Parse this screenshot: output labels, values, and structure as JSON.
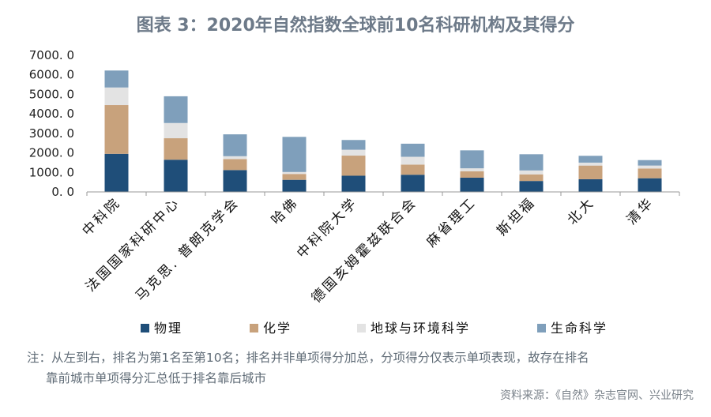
{
  "title": "图表 3：2020年自然指数全球前10名科研机构及其得分",
  "chart_data": {
    "type": "bar",
    "stacked": true,
    "categories": [
      "中科院",
      "法国国家科研中心",
      "马克思. 普朗克学会",
      "哈佛",
      "中科院大学",
      "德国亥姆霍兹联合会",
      "麻省理工",
      "斯坦福",
      "北大",
      "清华"
    ],
    "series": [
      {
        "name": "物理",
        "color": "#1f4e79",
        "values": [
          1950,
          1650,
          1120,
          620,
          830,
          880,
          730,
          560,
          650,
          700
        ]
      },
      {
        "name": "化学",
        "color": "#c8a27c",
        "values": [
          2500,
          1100,
          560,
          300,
          1030,
          520,
          330,
          340,
          700,
          500
        ]
      },
      {
        "name": "地球与环境科学",
        "color": "#e3e3e3",
        "values": [
          900,
          780,
          150,
          100,
          300,
          400,
          150,
          200,
          150,
          150
        ]
      },
      {
        "name": "生命科学",
        "color": "#7f9fbb",
        "values": [
          870,
          1370,
          1120,
          1800,
          500,
          670,
          920,
          830,
          350,
          280
        ]
      }
    ],
    "yticks": [
      "7000. 0",
      "6000. 0",
      "5000. 0",
      "4000. 0",
      "3000. 0",
      "2000. 0",
      "1000. 0",
      "0. 0"
    ],
    "ylim": [
      0,
      7000
    ],
    "xlabel": "",
    "ylabel": "",
    "legend_position": "bottom"
  },
  "note": {
    "line1": "注：从左到右，排名为第1名至第10名；排名并非单项得分加总，分项得分仅表示单项表现，故存在排名",
    "line2": "靠前城市单项得分汇总低于排名靠后城市"
  },
  "source": "资料来源：《自然》杂志官网、兴业研究"
}
